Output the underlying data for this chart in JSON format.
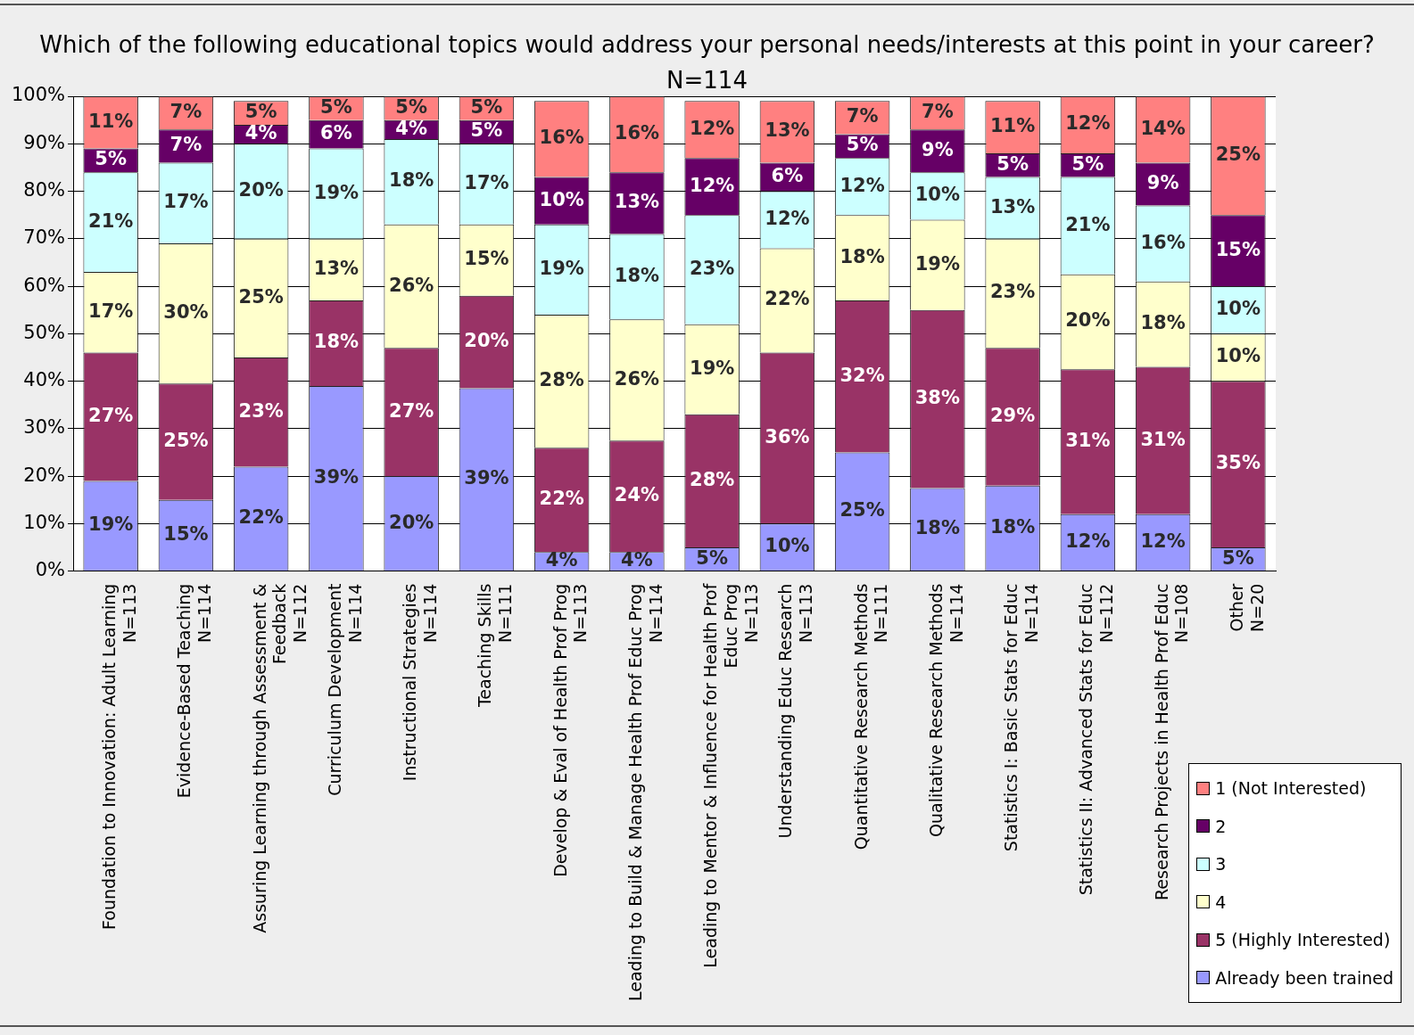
{
  "chart_data": {
    "type": "bar",
    "stacked": true,
    "title": "Which of the following educational topics would address your personal needs/interests at this point in your career?",
    "subtitle": "N=114",
    "categories": [
      "Foundation to Innovation: Adult Learning\nN=113",
      "Evidence-Based Teaching\nN=114",
      "Assuring Learning through Assessment &\nFeedback\nN=112",
      "Curriculum Development\nN=114",
      "Instructional Strategies\nN=114",
      "Teaching Skills\nN=111",
      "Develop & Eval of Health Prof Prog\nN=113",
      "Leading to Build & Manage Health Prof Educ Prog\nN=114",
      "Leading to Mentor & Influence for Health Prof\nEduc Prog\nN=113",
      "Understanding Educ Research\nN=113",
      "Quantitative Research Methods\nN=111",
      "Qualitative Research Methods\nN=114",
      "Statistics I: Basic Stats for Educ\nN=114",
      "Statistics II: Advanced Stats for Educ\nN=112",
      "Research Projects in Health Prof Educ\nN=108",
      "Other\nN=20"
    ],
    "series": [
      {
        "name": "Already been trained",
        "color": "#9999ff",
        "values": [
          19,
          15,
          22,
          39,
          20,
          38.5,
          4,
          4,
          5,
          10,
          25,
          17.5,
          18,
          12,
          12,
          5
        ],
        "value_labels": [
          "19%",
          "15%",
          "22%",
          "39%",
          "20%",
          "39%",
          "4%",
          "4%",
          "5%",
          "10%",
          "25%",
          "18%",
          "18%",
          "12%",
          "12%",
          "5%"
        ]
      },
      {
        "name": "5 (Highly Interested)",
        "color": "#993366",
        "values": [
          27,
          24.5,
          23,
          18,
          27,
          19.5,
          22,
          23.5,
          28,
          36,
          32,
          37.5,
          29,
          30.5,
          31,
          35
        ],
        "value_labels": [
          "27%",
          "25%",
          "23%",
          "18%",
          "27%",
          "20%",
          "22%",
          "24%",
          "28%",
          "36%",
          "32%",
          "38%",
          "29%",
          "31%",
          "31%",
          "35%"
        ]
      },
      {
        "name": "4",
        "color": "#ffffcc",
        "values": [
          17,
          29.5,
          25,
          13,
          26,
          15,
          28,
          25.5,
          19,
          22,
          18,
          19,
          23,
          20,
          18,
          10
        ],
        "value_labels": [
          "17%",
          "30%",
          "25%",
          "13%",
          "26%",
          "15%",
          "28%",
          "26%",
          "19%",
          "22%",
          "18%",
          "19%",
          "23%",
          "20%",
          "18%",
          "10%"
        ]
      },
      {
        "name": "3",
        "color": "#ccffff",
        "values": [
          21,
          17,
          20,
          19,
          18,
          17,
          19,
          18,
          23,
          12,
          12,
          10,
          13,
          20.5,
          16,
          10
        ],
        "value_labels": [
          "21%",
          "17%",
          "20%",
          "19%",
          "18%",
          "17%",
          "19%",
          "18%",
          "23%",
          "12%",
          "12%",
          "10%",
          "13%",
          "21%",
          "16%",
          "10%"
        ]
      },
      {
        "name": "2",
        "color": "#660066",
        "values": [
          5,
          7,
          4,
          6,
          4,
          5,
          10,
          13,
          12,
          6,
          5,
          9,
          5,
          5,
          9,
          15
        ],
        "value_labels": [
          "5%",
          "7%",
          "4%",
          "6%",
          "4%",
          "5%",
          "10%",
          "13%",
          "12%",
          "6%",
          "5%",
          "9%",
          "5%",
          "5%",
          "9%",
          "15%"
        ]
      },
      {
        "name": "1 (Not Interested)",
        "color": "#ff8080",
        "values": [
          11,
          7,
          5,
          5,
          5,
          5,
          16,
          16,
          12,
          13,
          7,
          7,
          11,
          12,
          14,
          25
        ],
        "value_labels": [
          "11%",
          "7%",
          "5%",
          "5%",
          "5%",
          "5%",
          "16%",
          "16%",
          "12%",
          "13%",
          "7%",
          "7%",
          "11%",
          "12%",
          "14%",
          "25%"
        ]
      }
    ],
    "ylim": [
      0,
      100
    ],
    "yticks": [
      {
        "value": 0,
        "label": "0%"
      },
      {
        "value": 10,
        "label": "10%"
      },
      {
        "value": 20,
        "label": "20%"
      },
      {
        "value": 30,
        "label": "30%"
      },
      {
        "value": 40,
        "label": "40%"
      },
      {
        "value": 50,
        "label": "50%"
      },
      {
        "value": 60,
        "label": "60%"
      },
      {
        "value": 70,
        "label": "70%"
      },
      {
        "value": 80,
        "label": "80%"
      },
      {
        "value": 90,
        "label": "90%"
      },
      {
        "value": 100,
        "label": "100%"
      }
    ],
    "grid": "y",
    "legend": "bottom right"
  }
}
